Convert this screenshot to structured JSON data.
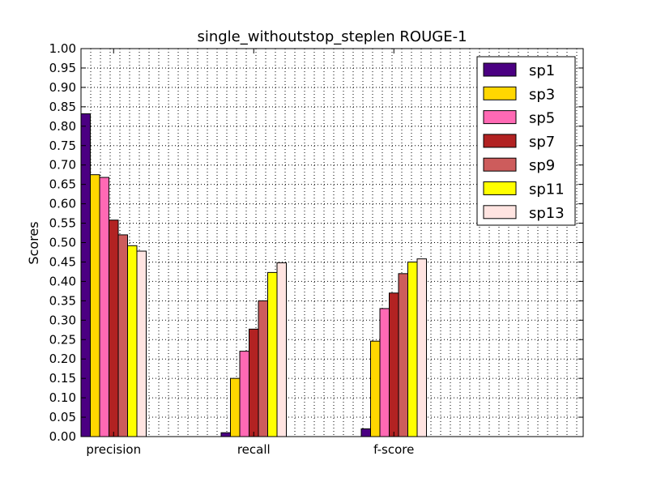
{
  "chart_data": {
    "type": "bar",
    "title": "single_withoutstop_steplen ROUGE-1",
    "xlabel": "",
    "ylabel": "Scores",
    "ylim": [
      0,
      1.0
    ],
    "yticks": [
      "0.00",
      "0.05",
      "0.10",
      "0.15",
      "0.20",
      "0.25",
      "0.30",
      "0.35",
      "0.40",
      "0.45",
      "0.50",
      "0.55",
      "0.60",
      "0.65",
      "0.70",
      "0.75",
      "0.80",
      "0.85",
      "0.90",
      "0.95",
      "1.00"
    ],
    "categories": [
      "precision",
      "recall",
      "f-score"
    ],
    "grid": true,
    "legend_position": "top-right",
    "series": [
      {
        "name": "sp1",
        "color": "#4b0082",
        "values": [
          0.832,
          0.01,
          0.02
        ]
      },
      {
        "name": "sp3",
        "color": "#ffd700",
        "values": [
          0.675,
          0.15,
          0.246
        ]
      },
      {
        "name": "sp5",
        "color": "#ff69b4",
        "values": [
          0.668,
          0.22,
          0.33
        ]
      },
      {
        "name": "sp7",
        "color": "#b22222",
        "values": [
          0.558,
          0.277,
          0.37
        ]
      },
      {
        "name": "sp9",
        "color": "#cd5c5c",
        "values": [
          0.52,
          0.35,
          0.42
        ]
      },
      {
        "name": "sp11",
        "color": "#ffff00",
        "values": [
          0.492,
          0.423,
          0.45
        ]
      },
      {
        "name": "sp13",
        "color": "#ffe4e1",
        "values": [
          0.478,
          0.448,
          0.458
        ]
      }
    ]
  }
}
